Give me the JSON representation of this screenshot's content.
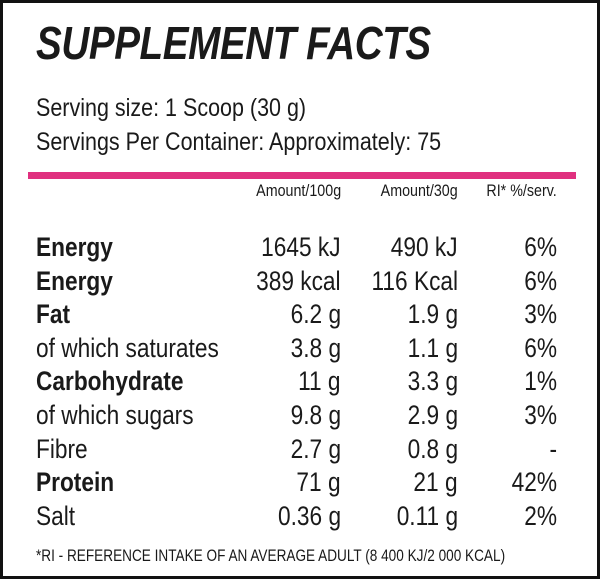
{
  "title": "SUPPLEMENT FACTS",
  "serving_size": "Serving size: 1 Scoop (30 g)",
  "servings_per_container": "Servings Per Container: Approximately: 75",
  "accent_color": "#e0307f",
  "columns": [
    "Amount/100g",
    "Amount/30g",
    "RI* %/serv."
  ],
  "rows": [
    {
      "label": "Energy",
      "bold": true,
      "per100": "1645 kJ",
      "per30": "490 kJ",
      "ri": "6%"
    },
    {
      "label": "Energy",
      "bold": true,
      "per100": "389 kcal",
      "per30": "116 Kcal",
      "ri": "6%"
    },
    {
      "label": "Fat",
      "bold": true,
      "per100": "6.2 g",
      "per30": "1.9 g",
      "ri": "3%"
    },
    {
      "label": "of which saturates",
      "bold": false,
      "per100": "3.8 g",
      "per30": "1.1 g",
      "ri": "6%"
    },
    {
      "label": "Carbohydrate",
      "bold": true,
      "per100": "11 g",
      "per30": "3.3 g",
      "ri": "1%"
    },
    {
      "label": "of which sugars",
      "bold": false,
      "per100": "9.8 g",
      "per30": "2.9 g",
      "ri": "3%"
    },
    {
      "label": "Fibre",
      "bold": false,
      "per100": "2.7 g",
      "per30": "0.8 g",
      "ri": "-"
    },
    {
      "label": "Protein",
      "bold": true,
      "per100": "71 g",
      "per30": "21 g",
      "ri": "42%"
    },
    {
      "label": "Salt",
      "bold": false,
      "per100": "0.36 g",
      "per30": "0.11 g",
      "ri": "2%"
    }
  ],
  "footnote": "*RI - REFERENCE INTAKE OF AN AVERAGE ADULT (8 400 KJ/2 000 KCAL)"
}
